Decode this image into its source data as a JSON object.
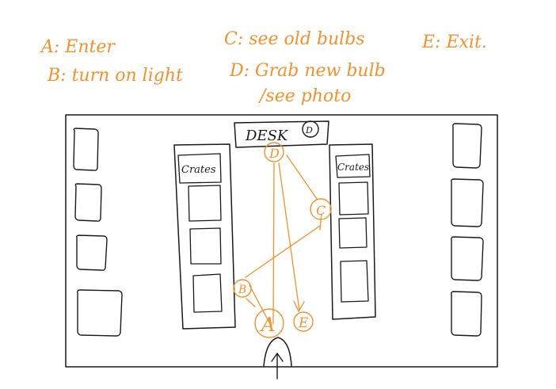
{
  "legend": {
    "a": "A: Enter",
    "b": "B: turn on light",
    "c": "C: see old bulbs",
    "d_line1": "D: Grab new bulb",
    "d_line2": "/see photo",
    "e": "E: Exit."
  },
  "desk": {
    "label": "DESK",
    "marker": "D"
  },
  "crates": {
    "left": "Crates",
    "right": "Crates"
  },
  "waypoints": {
    "a": "A",
    "b": "B",
    "c": "C",
    "d": "D",
    "e": "E"
  },
  "colors": {
    "ink": "#1a1a1a",
    "accent": "#f0922e"
  }
}
